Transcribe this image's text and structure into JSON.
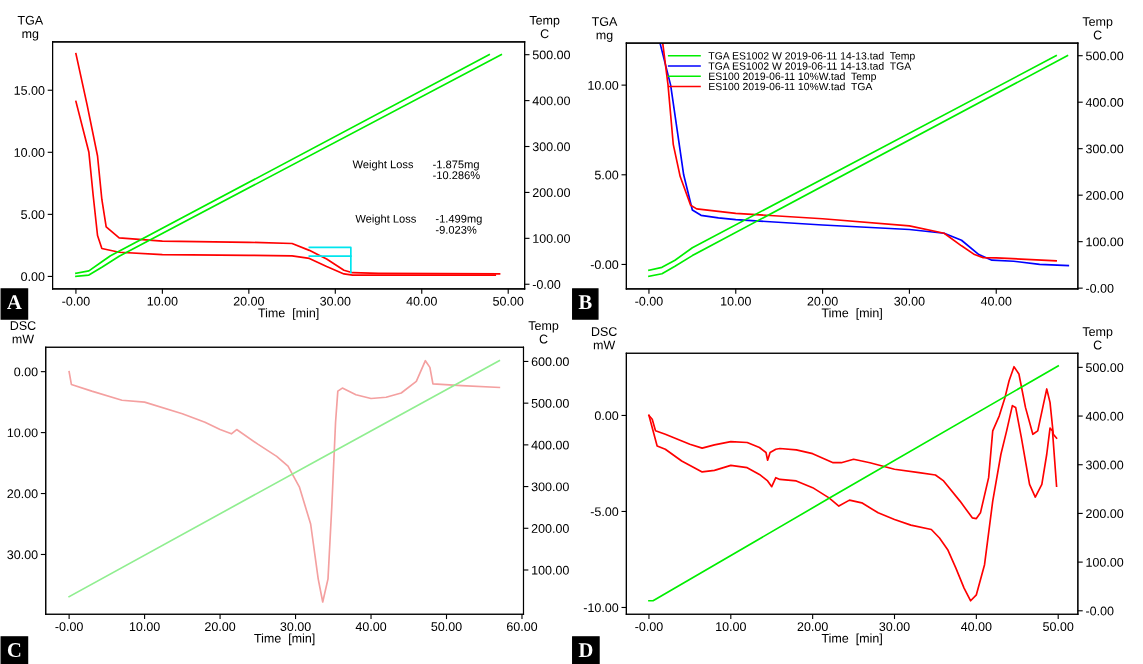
{
  "chart_data": [
    {
      "type": "line",
      "xlabel": "Time  [min]",
      "ylabel": "TGA\nmg",
      "y2label": "Temp\nC",
      "xlim": [
        -2.7,
        51.9
      ],
      "xticks": [
        {
          "value": 0,
          "label": "-0.00"
        },
        {
          "value": 10,
          "label": "10.00"
        },
        {
          "value": 20,
          "label": "20.00"
        },
        {
          "value": 30,
          "label": "30.00"
        },
        {
          "value": 40,
          "label": "40.00"
        },
        {
          "value": 50,
          "label": "50.00"
        }
      ],
      "ylim": [
        -1,
        18.9
      ],
      "yticks": [
        {
          "value": 0,
          "label": "0.00"
        },
        {
          "value": 5,
          "label": "5.00"
        },
        {
          "value": 10,
          "label": "10.00"
        },
        {
          "value": 15,
          "label": "15.00"
        }
      ],
      "y2lim": [
        -10,
        528
      ],
      "y2ticks": [
        {
          "value": 0,
          "label": "-0.00"
        },
        {
          "value": 100,
          "label": "100.00"
        },
        {
          "value": 200,
          "label": "200.00"
        },
        {
          "value": 300,
          "label": "300.00"
        },
        {
          "value": 400,
          "label": "400.00"
        },
        {
          "value": 500,
          "label": "500.00"
        }
      ],
      "annotations": [
        "A",
        "Weight Loss",
        "-1.875mg",
        "-10.286%",
        "Weight Loss",
        "-1.499mg",
        "-9.023%"
      ],
      "series": [
        {
          "color": "#ff0000",
          "x": [
            0,
            1.3,
            2.5,
            3,
            3.5,
            5,
            10,
            20,
            25,
            27,
            29,
            31,
            32,
            35,
            49
          ],
          "values": [
            17.95,
            13.8,
            9.7,
            6.2,
            4.0,
            3.1,
            2.85,
            2.75,
            2.65,
            2.1,
            1.4,
            0.5,
            0.3,
            0.25,
            0.2
          ]
        },
        {
          "color": "#ff0000",
          "x": [
            0,
            1.5,
            2,
            2.5,
            3,
            5,
            10,
            20,
            25,
            27,
            29,
            31,
            32,
            48.5
          ],
          "values": [
            14.1,
            10,
            6.5,
            3.3,
            2.25,
            1.95,
            1.75,
            1.7,
            1.65,
            1.45,
            0.8,
            0.2,
            0.1,
            0.1
          ]
        },
        {
          "color": "#00e5ee",
          "x": [
            27,
            31.8,
            31.8
          ],
          "values": [
            2.34,
            2.34,
            0.3
          ]
        },
        {
          "color": "#00e5ee",
          "x": [
            27,
            31.8
          ],
          "values": [
            1.64,
            1.64
          ]
        },
        {
          "color": "#00ee00",
          "axis": "y2",
          "x": [
            0,
            1.5,
            3,
            4,
            47.8
          ],
          "values": [
            24,
            29,
            49,
            62,
            500
          ]
        },
        {
          "color": "#00ee00",
          "axis": "y2",
          "x": [
            0,
            1.5,
            3,
            5,
            49.2
          ],
          "values": [
            17,
            20,
            37,
            61,
            500
          ]
        }
      ]
    },
    {
      "type": "line",
      "xlabel": "Time  [min]",
      "ylabel": "TGA\nmg",
      "y2label": "Temp\nC",
      "legend": "top left",
      "xlim": [
        -2.6,
        49.4
      ],
      "xticks": [
        {
          "value": 0,
          "label": "-0.00"
        },
        {
          "value": 10,
          "label": "10.00"
        },
        {
          "value": 20,
          "label": "20.00"
        },
        {
          "value": 30,
          "label": "30.00"
        },
        {
          "value": 40,
          "label": "40.00"
        }
      ],
      "ylim": [
        -1.36,
        12.34
      ],
      "yticks": [
        {
          "value": 0,
          "label": "-0.00"
        },
        {
          "value": 5,
          "label": "5.00"
        },
        {
          "value": 10,
          "label": "10.00"
        }
      ],
      "y2lim": [
        -1.5,
        527
      ],
      "y2ticks": [
        {
          "value": 0,
          "label": "-0.00"
        },
        {
          "value": 100,
          "label": "100.00"
        },
        {
          "value": 200,
          "label": "200.00"
        },
        {
          "value": 300,
          "label": "300.00"
        },
        {
          "value": 400,
          "label": "400.00"
        },
        {
          "value": 500,
          "label": "500.00"
        }
      ],
      "annotations": [
        "B"
      ],
      "series": [
        {
          "name": "TGA ES1002 W 2019-06-11 14-13.tad  Temp",
          "color": "#00ee00",
          "axis": "y2",
          "x": [
            0,
            1.5,
            3,
            5,
            46.9
          ],
          "values": [
            38.6,
            44.8,
            60,
            87,
            500
          ]
        },
        {
          "name": "TGA ES1002 W 2019-06-11 14-13.tad  TGA",
          "color": "#0000ff",
          "x": [
            1.3,
            2.5,
            4,
            5,
            6,
            8,
            10,
            20,
            30,
            34,
            36,
            38,
            39.5,
            42,
            45,
            48.3
          ],
          "values": [
            12.3,
            10,
            5,
            3.04,
            2.74,
            2.6,
            2.5,
            2.2,
            1.95,
            1.74,
            1.35,
            0.55,
            0.24,
            0.18,
            0.0,
            -0.06
          ]
        },
        {
          "name": "ES100 2019-06-11 10%W.tad  Temp",
          "color": "#00ee00",
          "axis": "y2",
          "x": [
            0,
            1.5,
            3,
            5,
            48.2
          ],
          "values": [
            25.5,
            31,
            47,
            70,
            500
          ]
        },
        {
          "name": "ES100 2019-06-11 10%W.tad  TGA",
          "color": "#ff0000",
          "x": [
            1.6,
            2.2,
            2.8,
            3.6,
            4.8,
            5.5,
            10,
            20,
            30,
            34,
            36,
            37.5,
            38.5,
            40,
            46.9
          ],
          "values": [
            12.3,
            10,
            6.7,
            4.9,
            3.3,
            3.1,
            2.85,
            2.55,
            2.15,
            1.74,
            1.04,
            0.55,
            0.38,
            0.37,
            0.2
          ]
        }
      ]
    },
    {
      "type": "line",
      "xlabel": "Time  [min]",
      "ylabel": "DSC\nmW",
      "y2label": "Temp\nC",
      "xlim": [
        -3.1,
        60.2
      ],
      "xticks": [
        {
          "value": 0,
          "label": "-0.00"
        },
        {
          "value": 10,
          "label": "10.00"
        },
        {
          "value": 20,
          "label": "20.00"
        },
        {
          "value": 30,
          "label": "30.00"
        },
        {
          "value": 40,
          "label": "40.00"
        },
        {
          "value": 50,
          "label": "50.00"
        },
        {
          "value": 60,
          "label": "60.00"
        }
      ],
      "ylim": [
        39.8,
        -4.0
      ],
      "yticks": [
        {
          "value": 0,
          "label": "0.00"
        },
        {
          "value": 10,
          "label": "10.00"
        },
        {
          "value": 20,
          "label": "20.00"
        },
        {
          "value": 30,
          "label": "30.00"
        }
      ],
      "y2lim": [
        -6,
        634
      ],
      "y2ticks": [
        {
          "value": 100,
          "label": "100.00"
        },
        {
          "value": 200,
          "label": "200.00"
        },
        {
          "value": 300,
          "label": "300.00"
        },
        {
          "value": 400,
          "label": "400.00"
        },
        {
          "value": 500,
          "label": "500.00"
        },
        {
          "value": 600,
          "label": "600.00"
        }
      ],
      "annotations": [
        "C"
      ],
      "series": [
        {
          "color": "#f4a0a0",
          "x": [
            0,
            0.3,
            3,
            7,
            10,
            15,
            18,
            20,
            21.5,
            22.2,
            25,
            27.5,
            29,
            30.5,
            32,
            33,
            33.6,
            34.3,
            34.8,
            35.3,
            35.6,
            36.2,
            38,
            40,
            42,
            44,
            46,
            47.2,
            47.8,
            48.2,
            52,
            57
          ],
          "values": [
            0.0,
            2.1,
            3.2,
            4.7,
            5.0,
            6.9,
            8.3,
            9.5,
            10.2,
            9.5,
            11.9,
            13.9,
            15.5,
            18.9,
            25,
            34,
            37.8,
            34,
            22.2,
            8.3,
            3.2,
            2.7,
            3.8,
            4.4,
            4.2,
            3.5,
            1.6,
            -1.8,
            -0.7,
            2.0,
            2.3,
            2.6
          ]
        },
        {
          "color": "#90ee90",
          "axis": "y2",
          "x": [
            0,
            33.4,
            57
          ],
          "values": [
            36,
            368,
            602
          ]
        }
      ]
    },
    {
      "type": "line",
      "xlabel": "Time  [min]",
      "ylabel": "DSC\nmW",
      "y2label": "Temp\nC",
      "xlim": [
        -2.76,
        52.4
      ],
      "xticks": [
        {
          "value": 0,
          "label": "-0.00"
        },
        {
          "value": 10,
          "label": "10.00"
        },
        {
          "value": 20,
          "label": "20.00"
        },
        {
          "value": 30,
          "label": "30.00"
        },
        {
          "value": 40,
          "label": "40.00"
        },
        {
          "value": 50,
          "label": "50.00"
        }
      ],
      "ylim": [
        -10.35,
        3.24
      ],
      "yticks": [
        {
          "value": -10,
          "label": "-10.00"
        },
        {
          "value": -5,
          "label": "-5.00"
        },
        {
          "value": 0,
          "label": "0.00"
        }
      ],
      "y2lim": [
        -7,
        529
      ],
      "y2ticks": [
        {
          "value": 0,
          "label": "-0.00"
        },
        {
          "value": 100,
          "label": "100.00"
        },
        {
          "value": 200,
          "label": "200.00"
        },
        {
          "value": 300,
          "label": "300.00"
        },
        {
          "value": 400,
          "label": "400.00"
        },
        {
          "value": 500,
          "label": "500.00"
        }
      ],
      "annotations": [
        "D"
      ],
      "series": [
        {
          "color": "#ff0000",
          "x": [
            0,
            0.4,
            0.8,
            2,
            5,
            6.5,
            8,
            10,
            12,
            13.5,
            14.3,
            14.5,
            14.8,
            15.5,
            16,
            18,
            20,
            22.5,
            23.5,
            25,
            27,
            30,
            33,
            35,
            36,
            38,
            39.5,
            40,
            40.5,
            41.5,
            42,
            42.8,
            43.5,
            44,
            44.6,
            45.2,
            46,
            46.9,
            47.5,
            48.2,
            48.6,
            49,
            49.4,
            49.8
          ],
          "values": [
            0,
            -0.2,
            -0.8,
            -0.98,
            -1.5,
            -1.7,
            -1.53,
            -1.36,
            -1.41,
            -1.67,
            -1.93,
            -2.33,
            -1.93,
            -1.76,
            -1.72,
            -1.79,
            -1.99,
            -2.46,
            -2.46,
            -2.28,
            -2.46,
            -2.8,
            -2.98,
            -3.1,
            -3.41,
            -4.46,
            -5.33,
            -5.37,
            -5.07,
            -3.24,
            -0.8,
            -0.02,
            0.94,
            1.81,
            2.54,
            2.16,
            0.42,
            -0.98,
            -0.8,
            0.59,
            1.38,
            0.68,
            -0.98,
            -1.18
          ]
        },
        {
          "color": "#ff0000",
          "x": [
            0,
            0.5,
            1,
            2,
            4,
            6.5,
            8,
            10,
            12,
            13.5,
            14,
            14.5,
            15,
            15.5,
            16,
            18,
            20,
            22,
            23.2,
            24.5,
            26,
            28,
            30,
            32,
            34.5,
            35.5,
            36.5,
            37.5,
            38.5,
            39.3,
            40,
            41,
            42,
            43,
            43.7,
            44.4,
            44.8,
            45.5,
            46.5,
            47.2,
            48,
            48.6,
            49,
            49.3,
            49.8
          ],
          "values": [
            0,
            -0.8,
            -1.59,
            -1.76,
            -2.37,
            -2.94,
            -2.86,
            -2.6,
            -2.72,
            -3.07,
            -3.24,
            -3.41,
            -3.71,
            -3.24,
            -3.33,
            -3.41,
            -3.76,
            -4.29,
            -4.72,
            -4.41,
            -4.55,
            -5.07,
            -5.42,
            -5.71,
            -5.94,
            -6.38,
            -6.99,
            -7.95,
            -8.99,
            -9.65,
            -9.34,
            -7.77,
            -4.46,
            -2.02,
            -0.8,
            0.51,
            0.42,
            -1.15,
            -3.59,
            -4.25,
            -3.59,
            -2.02,
            -0.66,
            -0.8,
            -3.68
          ]
        },
        {
          "color": "#00ee00",
          "axis": "y2",
          "x": [
            0,
            0.5,
            22,
            50
          ],
          "values": [
            20.6,
            20.6,
            231,
            503
          ]
        }
      ]
    }
  ]
}
